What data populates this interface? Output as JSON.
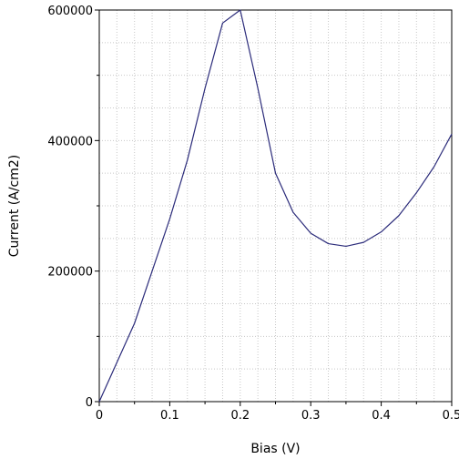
{
  "chart_data": {
    "type": "line",
    "title": "",
    "xlabel": "Bias (V)",
    "ylabel": "Current (A/cm2)",
    "xlim": [
      0,
      0.5
    ],
    "ylim": [
      0,
      600000
    ],
    "x_ticks": [
      "0",
      "0.1",
      "0.2",
      "0.3",
      "0.4",
      "0.5"
    ],
    "y_ticks": [
      "0",
      "200000",
      "400000",
      "600000"
    ],
    "grid": true,
    "legend": "none",
    "series": [
      {
        "color": "#2b2b7a",
        "x": [
          0,
          0.025,
          0.05,
          0.075,
          0.1,
          0.125,
          0.15,
          0.175,
          0.2,
          0.225,
          0.25,
          0.275,
          0.3,
          0.325,
          0.35,
          0.375,
          0.4,
          0.425,
          0.45,
          0.475,
          0.5
        ],
        "y": [
          0,
          60000,
          120000,
          200000,
          280000,
          370000,
          480000,
          580000,
          600000,
          480000,
          350000,
          290000,
          258000,
          242000,
          238000,
          244000,
          260000,
          285000,
          320000,
          360000,
          410000
        ]
      }
    ]
  }
}
